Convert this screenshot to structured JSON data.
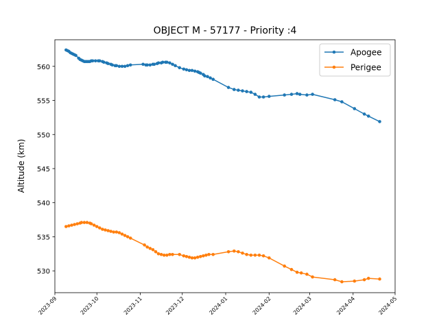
{
  "chart_data": {
    "type": "line",
    "title": "OBJECT M - 57177 - Priority :4",
    "xlabel": "",
    "ylabel": "Altitude (km)",
    "ylim": [
      526.8,
      563.9
    ],
    "xlim": [
      "2023-09-01",
      "2024-05-01"
    ],
    "yticks": [
      530,
      535,
      540,
      545,
      550,
      555,
      560
    ],
    "xticks": [
      "2023-09",
      "2023-10",
      "2023-11",
      "2023-12",
      "2024-01",
      "2024-02",
      "2024-03",
      "2024-04",
      "2024-05"
    ],
    "grid": false,
    "legend_position": "top-right",
    "series": [
      {
        "name": "Apogee",
        "color": "#1f77b4",
        "points": [
          [
            "2023-09-09",
            562.4
          ],
          [
            "2023-09-10",
            562.3
          ],
          [
            "2023-09-11",
            562.2
          ],
          [
            "2023-09-12",
            562.0
          ],
          [
            "2023-09-13",
            561.9
          ],
          [
            "2023-09-14",
            561.8
          ],
          [
            "2023-09-15",
            561.7
          ],
          [
            "2023-09-16",
            561.6
          ],
          [
            "2023-09-18",
            561.2
          ],
          [
            "2023-09-19",
            561.0
          ],
          [
            "2023-09-20",
            560.9
          ],
          [
            "2023-09-21",
            560.8
          ],
          [
            "2023-09-22",
            560.7
          ],
          [
            "2023-09-23",
            560.7
          ],
          [
            "2023-09-24",
            560.7
          ],
          [
            "2023-09-25",
            560.7
          ],
          [
            "2023-09-26",
            560.7
          ],
          [
            "2023-09-27",
            560.8
          ],
          [
            "2023-09-28",
            560.8
          ],
          [
            "2023-09-30",
            560.8
          ],
          [
            "2023-10-02",
            560.8
          ],
          [
            "2023-10-03",
            560.8
          ],
          [
            "2023-10-05",
            560.7
          ],
          [
            "2023-10-06",
            560.6
          ],
          [
            "2023-10-08",
            560.5
          ],
          [
            "2023-10-09",
            560.4
          ],
          [
            "2023-10-11",
            560.3
          ],
          [
            "2023-10-12",
            560.2
          ],
          [
            "2023-10-14",
            560.1
          ],
          [
            "2023-10-15",
            560.1
          ],
          [
            "2023-10-17",
            560.0
          ],
          [
            "2023-10-19",
            560.0
          ],
          [
            "2023-10-21",
            560.0
          ],
          [
            "2023-10-23",
            560.1
          ],
          [
            "2023-10-25",
            560.2
          ],
          [
            "2023-11-03",
            560.3
          ],
          [
            "2023-11-05",
            560.2
          ],
          [
            "2023-11-06",
            560.2
          ],
          [
            "2023-11-08",
            560.2
          ],
          [
            "2023-11-10",
            560.3
          ],
          [
            "2023-11-11",
            560.3
          ],
          [
            "2023-11-13",
            560.4
          ],
          [
            "2023-11-14",
            560.5
          ],
          [
            "2023-11-16",
            560.5
          ],
          [
            "2023-11-17",
            560.6
          ],
          [
            "2023-11-19",
            560.6
          ],
          [
            "2023-11-20",
            560.6
          ],
          [
            "2023-11-22",
            560.5
          ],
          [
            "2023-11-24",
            560.3
          ],
          [
            "2023-11-26",
            560.1
          ],
          [
            "2023-11-29",
            559.8
          ],
          [
            "2023-12-02",
            559.6
          ],
          [
            "2023-12-04",
            559.5
          ],
          [
            "2023-12-06",
            559.4
          ],
          [
            "2023-12-08",
            559.4
          ],
          [
            "2023-12-10",
            559.3
          ],
          [
            "2023-12-12",
            559.2
          ],
          [
            "2023-12-13",
            559.1
          ],
          [
            "2023-12-14",
            559.0
          ],
          [
            "2023-12-16",
            558.8
          ],
          [
            "2023-12-17",
            558.6
          ],
          [
            "2023-12-19",
            558.5
          ],
          [
            "2023-12-21",
            558.3
          ],
          [
            "2023-12-23",
            558.1
          ],
          [
            "2024-01-03",
            556.9
          ],
          [
            "2024-01-07",
            556.6
          ],
          [
            "2024-01-10",
            556.5
          ],
          [
            "2024-01-13",
            556.4
          ],
          [
            "2024-01-16",
            556.3
          ],
          [
            "2024-01-19",
            556.2
          ],
          [
            "2024-01-22",
            555.9
          ],
          [
            "2024-01-25",
            555.5
          ],
          [
            "2024-01-28",
            555.5
          ],
          [
            "2024-02-01",
            555.6
          ],
          [
            "2024-02-12",
            555.8
          ],
          [
            "2024-02-17",
            555.9
          ],
          [
            "2024-02-21",
            556.0
          ],
          [
            "2024-02-23",
            555.9
          ],
          [
            "2024-02-28",
            555.8
          ],
          [
            "2024-03-03",
            555.9
          ],
          [
            "2024-03-19",
            555.1
          ],
          [
            "2024-03-24",
            554.8
          ],
          [
            "2024-04-02",
            553.8
          ],
          [
            "2024-04-09",
            553.0
          ],
          [
            "2024-04-12",
            552.7
          ],
          [
            "2024-04-20",
            551.9
          ]
        ]
      },
      {
        "name": "Perigee",
        "color": "#ff7f0e",
        "points": [
          [
            "2023-09-09",
            536.5
          ],
          [
            "2023-09-11",
            536.6
          ],
          [
            "2023-09-13",
            536.7
          ],
          [
            "2023-09-15",
            536.8
          ],
          [
            "2023-09-17",
            536.9
          ],
          [
            "2023-09-19",
            537.0
          ],
          [
            "2023-09-20",
            537.1
          ],
          [
            "2023-09-22",
            537.1
          ],
          [
            "2023-09-24",
            537.1
          ],
          [
            "2023-09-26",
            537.0
          ],
          [
            "2023-09-27",
            536.9
          ],
          [
            "2023-09-29",
            536.7
          ],
          [
            "2023-10-01",
            536.5
          ],
          [
            "2023-10-03",
            536.3
          ],
          [
            "2023-10-05",
            536.1
          ],
          [
            "2023-10-07",
            536.0
          ],
          [
            "2023-10-09",
            535.9
          ],
          [
            "2023-10-11",
            535.8
          ],
          [
            "2023-10-13",
            535.7
          ],
          [
            "2023-10-15",
            535.7
          ],
          [
            "2023-10-17",
            535.6
          ],
          [
            "2023-10-19",
            535.4
          ],
          [
            "2023-10-21",
            535.2
          ],
          [
            "2023-10-23",
            535.0
          ],
          [
            "2023-10-25",
            534.8
          ],
          [
            "2023-11-04",
            533.8
          ],
          [
            "2023-11-06",
            533.5
          ],
          [
            "2023-11-08",
            533.3
          ],
          [
            "2023-11-10",
            533.1
          ],
          [
            "2023-11-12",
            532.8
          ],
          [
            "2023-11-14",
            532.5
          ],
          [
            "2023-11-16",
            532.4
          ],
          [
            "2023-11-18",
            532.3
          ],
          [
            "2023-11-20",
            532.3
          ],
          [
            "2023-11-22",
            532.4
          ],
          [
            "2023-11-24",
            532.4
          ],
          [
            "2023-11-29",
            532.4
          ],
          [
            "2023-12-02",
            532.2
          ],
          [
            "2023-12-04",
            532.1
          ],
          [
            "2023-12-06",
            532.0
          ],
          [
            "2023-12-08",
            531.9
          ],
          [
            "2023-12-10",
            531.9
          ],
          [
            "2023-12-12",
            532.0
          ],
          [
            "2023-12-14",
            532.1
          ],
          [
            "2023-12-16",
            532.2
          ],
          [
            "2023-12-18",
            532.3
          ],
          [
            "2023-12-20",
            532.4
          ],
          [
            "2023-12-23",
            532.4
          ],
          [
            "2024-01-03",
            532.8
          ],
          [
            "2024-01-07",
            532.9
          ],
          [
            "2024-01-10",
            532.8
          ],
          [
            "2024-01-13",
            532.6
          ],
          [
            "2024-01-16",
            532.4
          ],
          [
            "2024-01-19",
            532.3
          ],
          [
            "2024-01-22",
            532.3
          ],
          [
            "2024-01-25",
            532.3
          ],
          [
            "2024-01-28",
            532.2
          ],
          [
            "2024-02-01",
            531.9
          ],
          [
            "2024-02-12",
            530.7
          ],
          [
            "2024-02-17",
            530.2
          ],
          [
            "2024-02-21",
            529.8
          ],
          [
            "2024-02-24",
            529.7
          ],
          [
            "2024-02-28",
            529.5
          ],
          [
            "2024-03-03",
            529.1
          ],
          [
            "2024-03-19",
            528.7
          ],
          [
            "2024-03-24",
            528.4
          ],
          [
            "2024-04-02",
            528.5
          ],
          [
            "2024-04-09",
            528.7
          ],
          [
            "2024-04-12",
            528.9
          ],
          [
            "2024-04-20",
            528.8
          ]
        ]
      }
    ]
  }
}
